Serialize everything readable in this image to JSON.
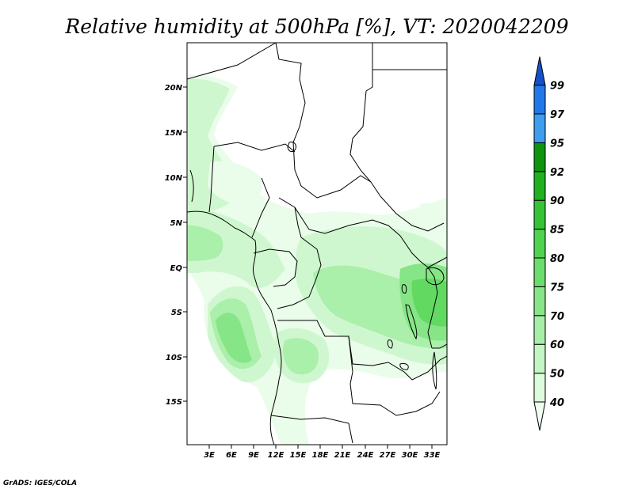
{
  "title": "Relative humidity at 500hPa [%], VT: 2020042209",
  "credit": "GrADS: IGES/COLA",
  "map": {
    "lat_labels": [
      "20N",
      "15N",
      "10N",
      "5N",
      "EQ",
      "5S",
      "10S",
      "15S"
    ],
    "lon_labels": [
      "3E",
      "6E",
      "9E",
      "12E",
      "15E",
      "18E",
      "21E",
      "24E",
      "27E",
      "30E",
      "33E"
    ]
  },
  "colorbar": {
    "levels": [
      "40",
      "50",
      "60",
      "70",
      "75",
      "80",
      "85",
      "90",
      "92",
      "95",
      "97",
      "99"
    ],
    "colors": [
      "#f0fdf0",
      "#dcfadc",
      "#c4f5c4",
      "#a6eea6",
      "#88e688",
      "#6cdd6c",
      "#50d350",
      "#36c436",
      "#20b020",
      "#0f940f",
      "#3e9ef0",
      "#2178e8",
      "#1450c8"
    ]
  },
  "shade_colors": {
    "c1": "#eafcea",
    "c2": "#cff7cf",
    "c3": "#aaefaa",
    "c4": "#86e586",
    "c5": "#62da62"
  }
}
